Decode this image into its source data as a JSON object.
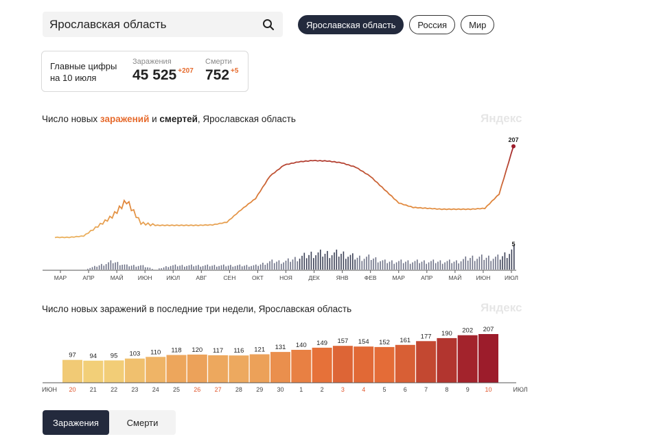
{
  "search": {
    "value": "Ярославская область"
  },
  "regions": [
    {
      "label": "Ярославская область",
      "active": true
    },
    {
      "label": "Россия",
      "active": false
    },
    {
      "label": "Мир",
      "active": false
    }
  ],
  "main_figures": {
    "label_line1": "Главные цифры",
    "label_line2": "на 10 июля",
    "infections_caption": "Заражения",
    "infections_value": "45 525",
    "infections_delta": "+207",
    "deaths_caption": "Смерти",
    "deaths_value": "752",
    "deaths_delta": "+5"
  },
  "chart1": {
    "title_part1": "Число новых ",
    "title_highlight": "заражений",
    "title_part2": " и ",
    "title_bold": "смертей",
    "title_part3": ", Ярославская область",
    "watermark": "Яндекс",
    "last_infections_label": "207",
    "last_deaths_label": "5"
  },
  "chart2": {
    "title": "Число новых заражений в последние три недели, Ярославская область",
    "watermark": "Яндекс"
  },
  "toggle": {
    "infections": "Заражения",
    "deaths": "Смерти"
  },
  "colors": {
    "accent": "#e66a2c",
    "dark": "#232a3d",
    "bar_low": "#f2cf78",
    "bar_high": "#9c1c2b"
  },
  "chart_data": [
    {
      "type": "line",
      "series": [
        {
          "name": "заражения",
          "x": [
            "МАР",
            "",
            "АПР",
            "",
            "МАЙ",
            "",
            "ИЮН",
            "",
            "ИЮЛ",
            "",
            "АВГ",
            "",
            "СЕН",
            "",
            "ОКТ",
            "",
            "НОЯ",
            "",
            "ДЕК",
            "",
            "ЯНВ",
            "",
            "ФЕВ",
            "",
            "МАР",
            "",
            "АПР",
            "",
            "МАЙ",
            "",
            "ИЮН",
            "",
            "ИЮЛ"
          ],
          "values": [
            3,
            3,
            6,
            28,
            50,
            85,
            35,
            30,
            30,
            30,
            30,
            31,
            37,
            65,
            90,
            140,
            165,
            172,
            175,
            174,
            170,
            160,
            140,
            110,
            80,
            70,
            68,
            66,
            66,
            66,
            68,
            100,
            207
          ]
        },
        {
          "name": "смерти",
          "x": [
            "МАР",
            "",
            "АПР",
            "",
            "МАЙ",
            "",
            "ИЮН",
            "",
            "ИЮЛ",
            "",
            "АВГ",
            "",
            "СЕН",
            "",
            "ОКТ",
            "",
            "НОЯ",
            "",
            "ДЕК",
            "",
            "ЯНВ",
            "",
            "ФЕВ",
            "",
            "МАР",
            "",
            "АПР",
            "",
            "МАЙ",
            "",
            "ИЮН",
            "",
            "ИЮЛ"
          ],
          "values": [
            0,
            0,
            0,
            1,
            2,
            1,
            1,
            0,
            1,
            1,
            1,
            1,
            1,
            1,
            1,
            2,
            2,
            3,
            4,
            4,
            4,
            3,
            3,
            2,
            2,
            2,
            2,
            2,
            2,
            3,
            3,
            3,
            5
          ]
        }
      ],
      "xticks": [
        "МАР",
        "АПР",
        "МАЙ",
        "ИЮН",
        "ИЮЛ",
        "АВГ",
        "СЕН",
        "ОКТ",
        "НОЯ",
        "ДЕК",
        "ЯНВ",
        "ФЕВ",
        "МАР",
        "АПР",
        "МАЙ",
        "ИЮН",
        "ИЮЛ"
      ],
      "ylim": [
        0,
        215
      ],
      "grid": false,
      "annotations": [
        "207",
        "5"
      ]
    },
    {
      "type": "bar",
      "categories": [
        "20",
        "21",
        "22",
        "23",
        "24",
        "25",
        "26",
        "27",
        "28",
        "29",
        "30",
        "1",
        "2",
        "3",
        "4",
        "5",
        "6",
        "7",
        "8",
        "9",
        "10"
      ],
      "values": [
        97,
        94,
        95,
        103,
        110,
        118,
        120,
        117,
        116,
        121,
        131,
        140,
        149,
        157,
        154,
        152,
        161,
        177,
        190,
        202,
        207
      ],
      "axis_start_label": "ИЮН",
      "axis_end_label": "ИЮЛ",
      "highlight_categories": [
        "20",
        "26",
        "27",
        "3",
        "4",
        "10"
      ],
      "ylim": [
        0,
        210
      ],
      "grid": false,
      "legend": "none"
    }
  ]
}
